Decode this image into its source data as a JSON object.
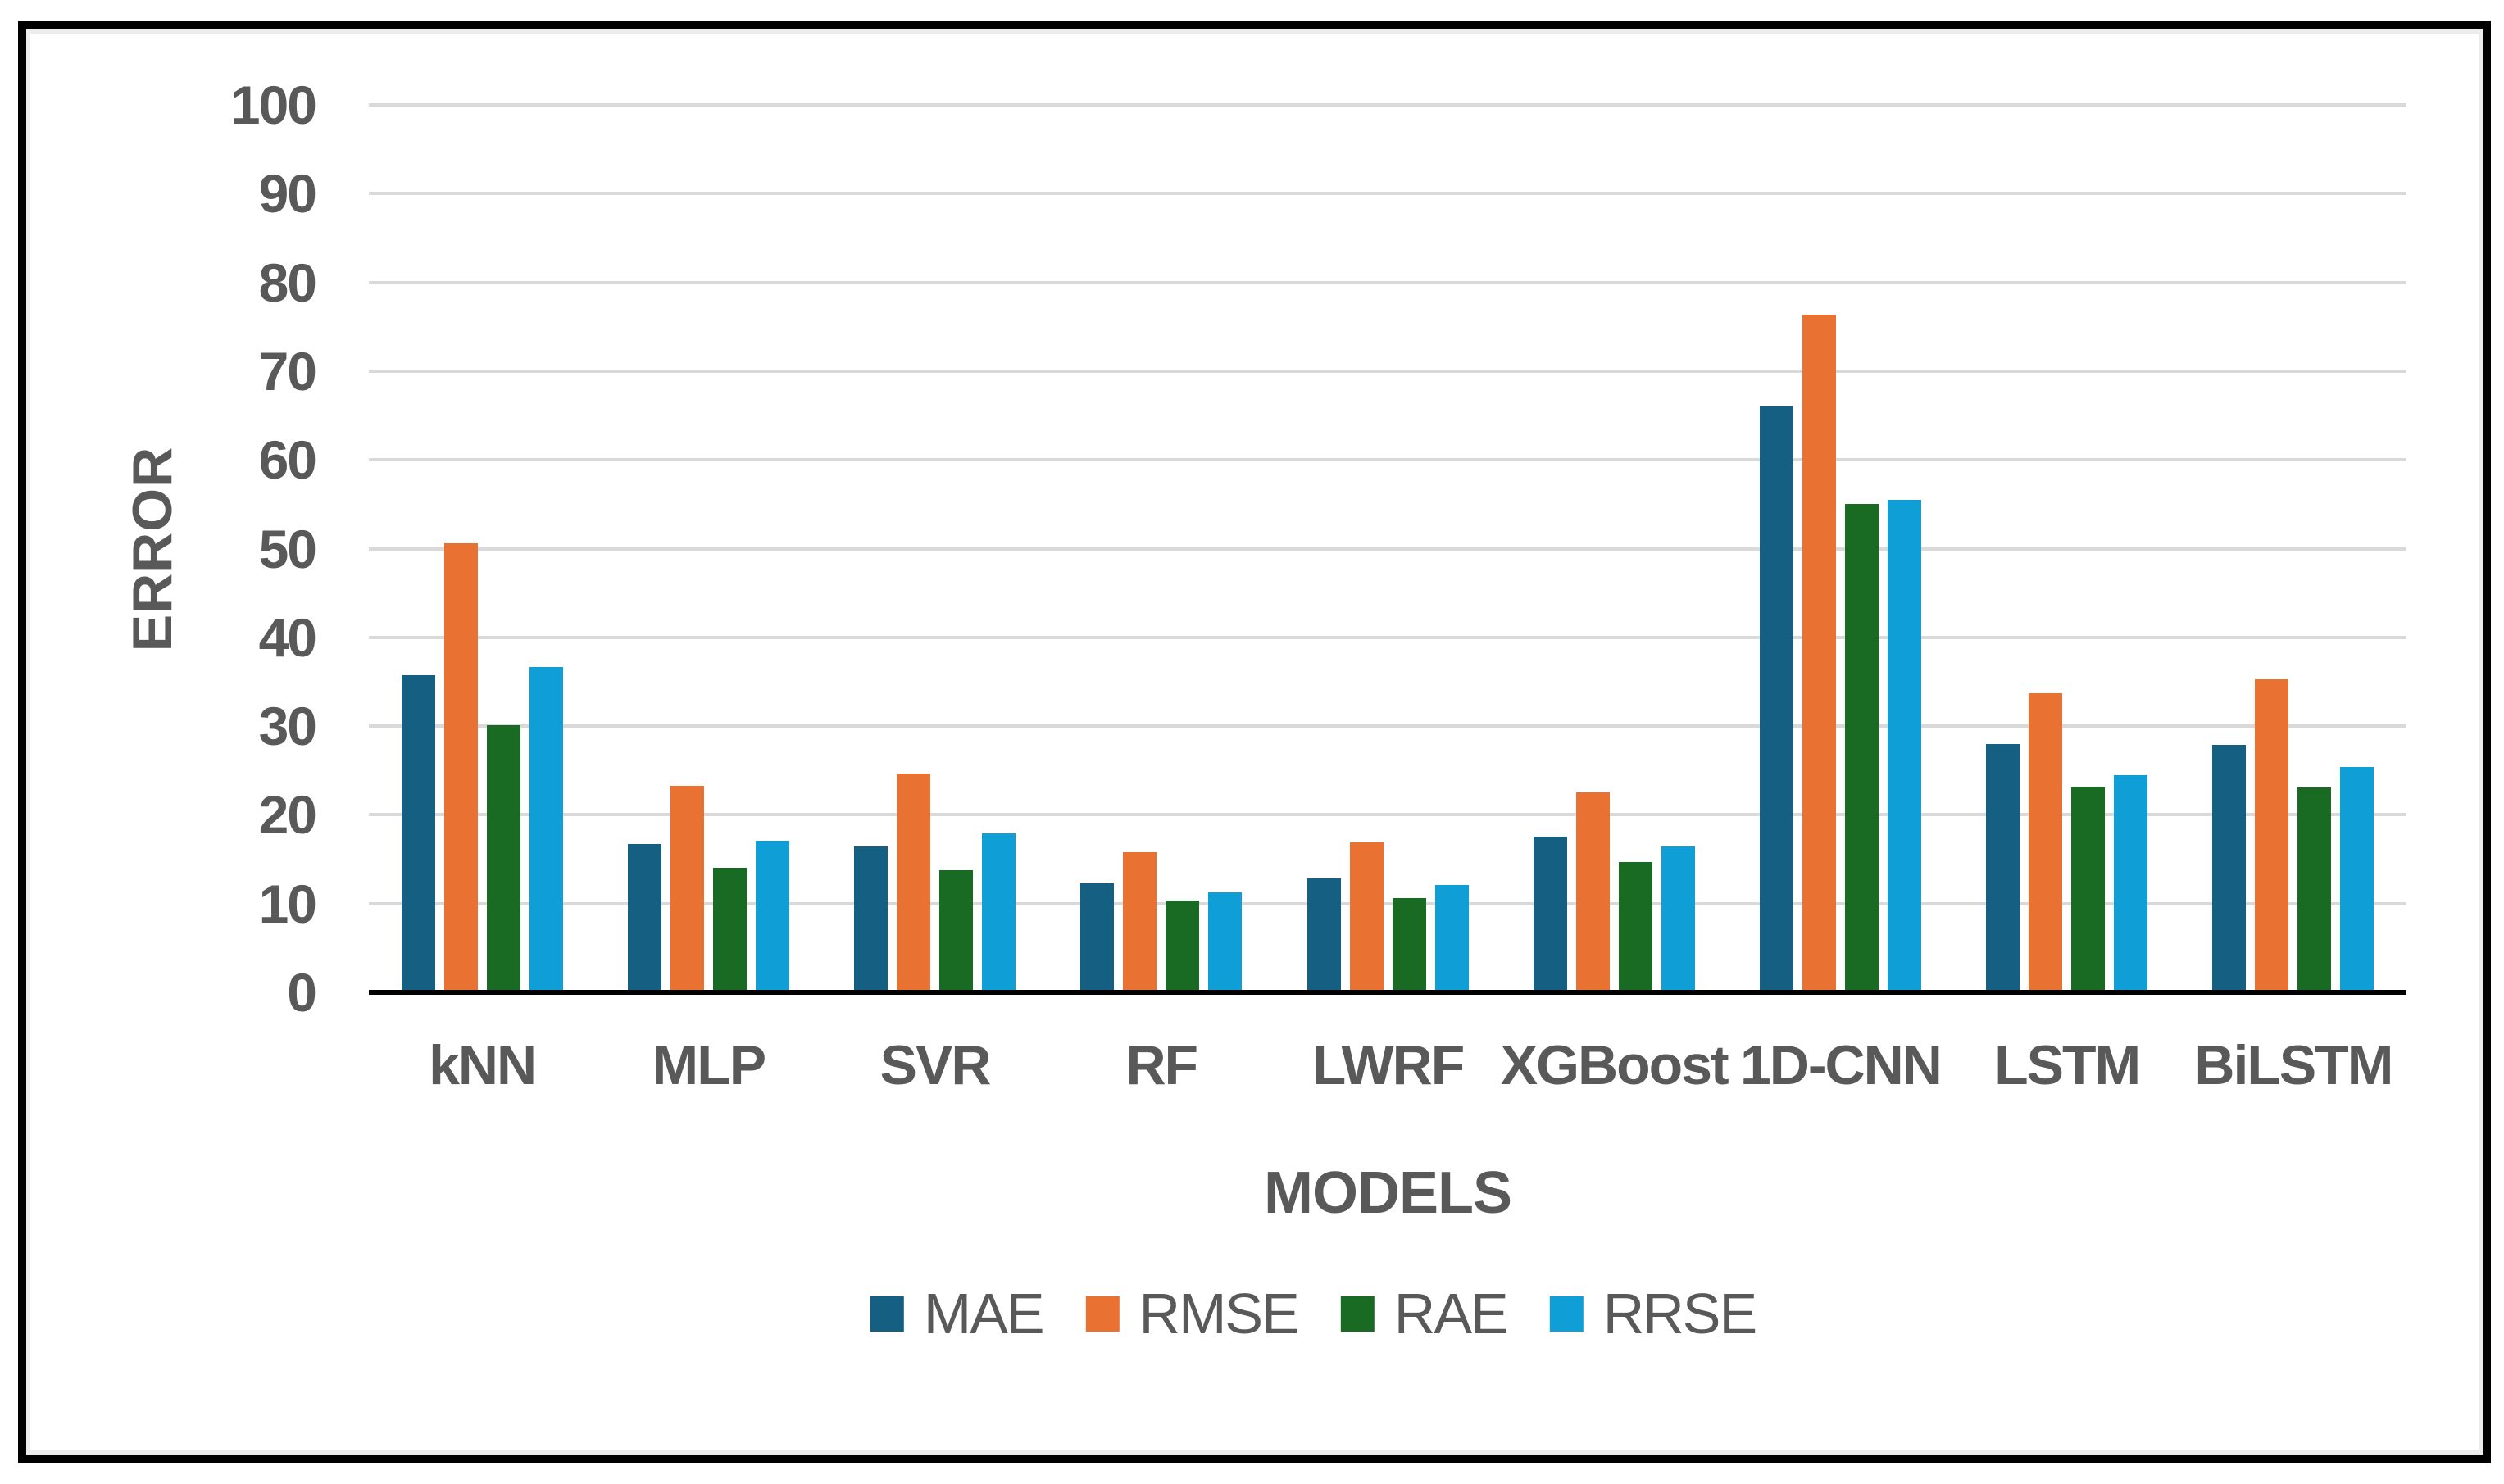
{
  "figure": {
    "background": "#FFFFFF",
    "border_color": "#000000",
    "text_color": "#595959",
    "gridline_color": "#D9D9D9",
    "axis_line_color": "#000000"
  },
  "chart_data": {
    "type": "bar",
    "title": "",
    "xlabel": "MODELS",
    "ylabel": "ERROR",
    "categories": [
      "kNN",
      "MLP",
      "SVR",
      "RF",
      "LWRF",
      "XGBoost",
      "1D-CNN",
      "LSTM",
      "BiLSTM"
    ],
    "series": [
      {
        "name": "MAE",
        "color": "#156082",
        "values": [
          35.7,
          16.7,
          16.4,
          12.3,
          12.8,
          17.5,
          66.0,
          28.0,
          27.9
        ]
      },
      {
        "name": "RMSE",
        "color": "#E97132",
        "values": [
          50.6,
          23.3,
          24.7,
          15.8,
          16.9,
          22.5,
          76.4,
          33.7,
          35.3
        ]
      },
      {
        "name": "RAE",
        "color": "#196B24",
        "values": [
          30.1,
          14.0,
          13.8,
          10.3,
          10.6,
          14.7,
          55.0,
          23.2,
          23.1
        ]
      },
      {
        "name": "RRSE",
        "color": "#0F9ED5",
        "values": [
          36.7,
          17.1,
          17.9,
          11.3,
          12.1,
          16.4,
          55.5,
          24.5,
          25.4
        ]
      }
    ],
    "ylim": [
      0,
      100
    ],
    "y_ticks": [
      0,
      10,
      20,
      30,
      40,
      50,
      60,
      70,
      80,
      90,
      100
    ],
    "grid": "horizontal",
    "legend_position": "bottom"
  }
}
